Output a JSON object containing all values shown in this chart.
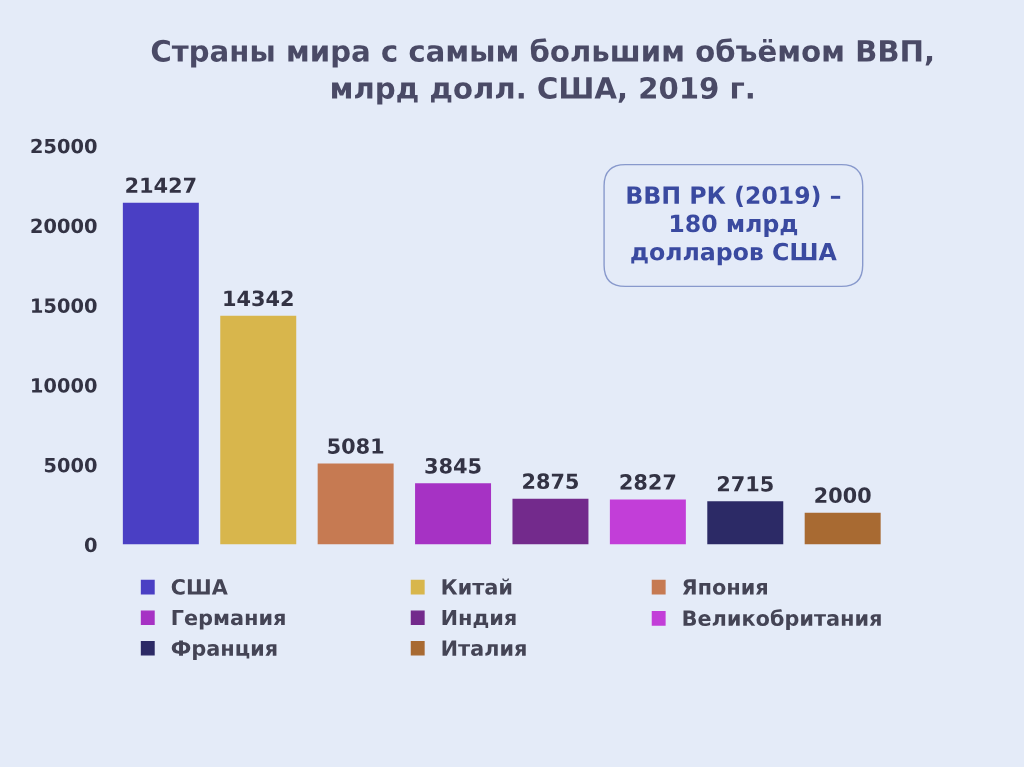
{
  "chart_data": {
    "type": "bar",
    "title": "Страны мира с самым большим объёмом ВВП,\nмлрд долл. США, 2019 г.",
    "categories": [
      null,
      null,
      null,
      null,
      null,
      null,
      null,
      null
    ],
    "stacked": true,
    "series": [
      {
        "name": "США",
        "color": "#4a3fc4",
        "values": [
          21427,
          null,
          null,
          null,
          null,
          null,
          null,
          null
        ]
      },
      {
        "name": "Китай",
        "color": "#d8b64c",
        "values": [
          null,
          14342,
          null,
          null,
          null,
          null,
          null,
          null
        ]
      },
      {
        "name": "Япония",
        "color": "#c67a52",
        "values": [
          null,
          null,
          5081,
          null,
          null,
          null,
          null,
          null
        ]
      },
      {
        "name": "Германия",
        "color": "#a632c4",
        "values": [
          null,
          null,
          null,
          3845,
          null,
          null,
          null,
          null
        ]
      },
      {
        "name": "Индия",
        "color": "#732a8c",
        "values": [
          null,
          null,
          null,
          null,
          2875,
          null,
          null,
          null
        ]
      },
      {
        "name": "Великобритания",
        "color": "#c23ed8",
        "values": [
          null,
          null,
          null,
          null,
          null,
          2827,
          null,
          null
        ]
      },
      {
        "name": "Франция",
        "color": "#2c2a66",
        "values": [
          null,
          null,
          null,
          null,
          null,
          null,
          2715,
          null
        ]
      },
      {
        "name": "Италия",
        "color": "#a86a32",
        "values": [
          null,
          null,
          null,
          null,
          null,
          null,
          null,
          2000
        ]
      }
    ],
    "ylim": [
      0,
      25000
    ],
    "yticks": [
      0,
      5000,
      10000,
      15000,
      20000,
      25000
    ],
    "tick_labels": "y",
    "data_labels": true,
    "grid": false,
    "legend": "bottom",
    "annotations": [
      "ВВП РК (2019) –\n180 млрд\nдолларов США"
    ]
  }
}
